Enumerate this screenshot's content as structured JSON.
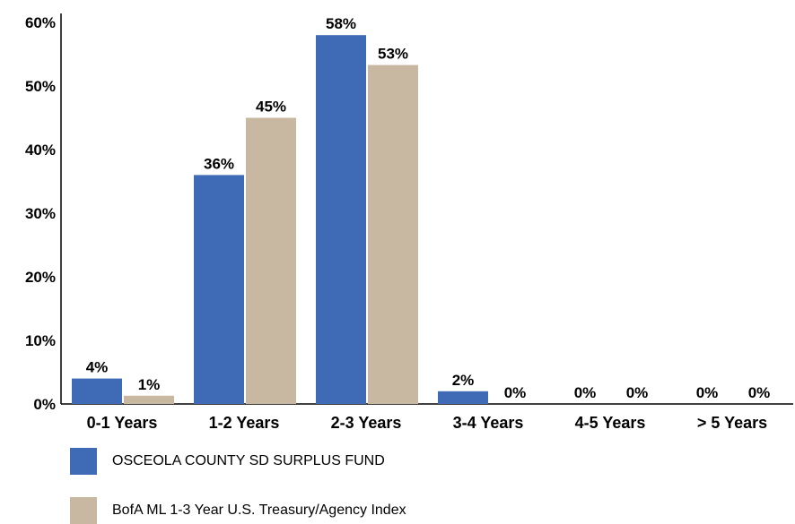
{
  "chart_data": {
    "type": "bar",
    "categories": [
      "0-1 Years",
      "1-2 Years",
      "2-3 Years",
      "3-4 Years",
      "4-5 Years",
      "> 5 Years"
    ],
    "series": [
      {
        "name": "OSCEOLA COUNTY SD SURPLUS FUND",
        "color": "#3F6AB5",
        "values": [
          4,
          36,
          58,
          2,
          0,
          0
        ],
        "labels": [
          "4%",
          "36%",
          "58%",
          "2%",
          "0%",
          "0%"
        ]
      },
      {
        "name": "BofA ML 1-3 Year U.S. Treasury/Agency Index",
        "color": "#C8B8A2",
        "values": [
          1.3,
          45,
          53.3,
          0,
          0,
          0
        ],
        "labels": [
          "1%",
          "45%",
          "53%",
          "0%",
          "0%",
          "0%"
        ]
      }
    ],
    "yticks": [
      "0%",
      "10%",
      "20%",
      "30%",
      "40%",
      "50%",
      "60%"
    ],
    "ylim": [
      0,
      60
    ],
    "grid": false,
    "legend_position": "bottom"
  }
}
